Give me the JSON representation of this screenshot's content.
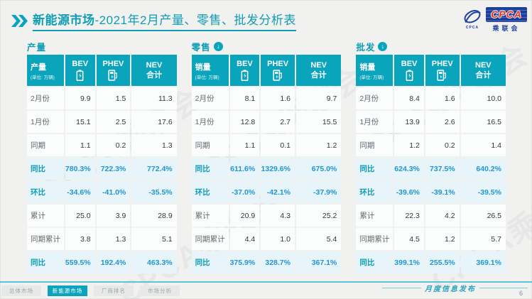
{
  "header": {
    "title_bold": "新能源市场",
    "title_rest": "-2021年2月产量、零售、批发分析表",
    "logo": {
      "icon_label": "CPCA",
      "cpca": "CPCA",
      "sub": "乘联会"
    }
  },
  "chart_data": [
    {
      "type": "table",
      "id": "production",
      "title": "产量",
      "arrow": false,
      "header_label": "产量",
      "unit": "(单位: 万辆)",
      "columns": [
        "BEV",
        "PHEV",
        "NEV\n合计"
      ],
      "rows": [
        {
          "label": "2月份",
          "values": [
            "9.9",
            "1.5",
            "11.3"
          ],
          "highlight": false
        },
        {
          "label": "1月份",
          "values": [
            "15.1",
            "2.5",
            "17.6"
          ],
          "highlight": false
        },
        {
          "label": "同期",
          "values": [
            "1.1",
            "0.2",
            "1.3"
          ],
          "highlight": false
        },
        {
          "label": "同比",
          "values": [
            "780.3%",
            "722.3%",
            "772.4%"
          ],
          "highlight": true
        },
        {
          "label": "环比",
          "values": [
            "-34.6%",
            "-41.0%",
            "-35.5%"
          ],
          "highlight": true
        },
        {
          "label": "累计",
          "values": [
            "25.0",
            "3.9",
            "28.9"
          ],
          "highlight": false
        },
        {
          "label": "同期累计",
          "values": [
            "3.8",
            "1.3",
            "5.1"
          ],
          "highlight": false
        },
        {
          "label": "同比",
          "values": [
            "559.5%",
            "192.4%",
            "463.3%"
          ],
          "highlight": true
        }
      ]
    },
    {
      "type": "table",
      "id": "retail",
      "title": "零售",
      "arrow": true,
      "header_label": "销量",
      "unit": "(单位: 万辆)",
      "columns": [
        "BEV",
        "PHEV",
        "NEV\n合计"
      ],
      "rows": [
        {
          "label": "2月份",
          "values": [
            "8.1",
            "1.6",
            "9.7"
          ],
          "highlight": false
        },
        {
          "label": "1月份",
          "values": [
            "12.8",
            "2.7",
            "15.5"
          ],
          "highlight": false
        },
        {
          "label": "同期",
          "values": [
            "1.1",
            "0.1",
            "1.2"
          ],
          "highlight": false
        },
        {
          "label": "同比",
          "values": [
            "611.6%",
            "1329.6%",
            "675.0%"
          ],
          "highlight": true
        },
        {
          "label": "环比",
          "values": [
            "-37.0%",
            "-42.1%",
            "-37.9%"
          ],
          "highlight": true
        },
        {
          "label": "累计",
          "values": [
            "20.9",
            "4.3",
            "25.2"
          ],
          "highlight": false
        },
        {
          "label": "同期累计",
          "values": [
            "4.4",
            "1.0",
            "5.4"
          ],
          "highlight": false
        },
        {
          "label": "同比",
          "values": [
            "375.9%",
            "328.7%",
            "367.1%"
          ],
          "highlight": true
        }
      ]
    },
    {
      "type": "table",
      "id": "wholesale",
      "title": "批发",
      "arrow": true,
      "header_label": "销量",
      "unit": "(单位: 万辆)",
      "columns": [
        "BEV",
        "PHEV",
        "NEV\n合计"
      ],
      "rows": [
        {
          "label": "2月份",
          "values": [
            "8.4",
            "1.6",
            "10.0"
          ],
          "highlight": false
        },
        {
          "label": "1月份",
          "values": [
            "13.9",
            "2.6",
            "16.5"
          ],
          "highlight": false
        },
        {
          "label": "同期",
          "values": [
            "1.2",
            "0.2",
            "1.4"
          ],
          "highlight": false
        },
        {
          "label": "同比",
          "values": [
            "624.3%",
            "737.5%",
            "640.2%"
          ],
          "highlight": true
        },
        {
          "label": "环比",
          "values": [
            "-39.6%",
            "-39.1%",
            "-39.5%"
          ],
          "highlight": true
        },
        {
          "label": "累计",
          "values": [
            "22.3",
            "4.2",
            "26.5"
          ],
          "highlight": false
        },
        {
          "label": "同期累计",
          "values": [
            "4.5",
            "1.2",
            "5.7"
          ],
          "highlight": false
        },
        {
          "label": "同比",
          "values": [
            "399.1%",
            "255.5%",
            "369.1%"
          ],
          "highlight": true
        }
      ]
    }
  ],
  "footer": {
    "tabs": [
      {
        "label": "总体市场",
        "active": false,
        "name": "tab-overall-market"
      },
      {
        "label": "新能源市场",
        "active": true,
        "name": "tab-nev-market"
      },
      {
        "label": "厂商排名",
        "active": false,
        "name": "tab-manufacturer-ranking"
      },
      {
        "label": "市场分析",
        "active": false,
        "name": "tab-market-analysis"
      }
    ],
    "publish_label": "月度信息发布",
    "page_number": "6"
  },
  "watermark": "CPCA乘联会",
  "colors": {
    "accent": "#0ba4bd",
    "accent_dark": "#0f9db4",
    "highlight_bg": "#e7f4fa",
    "highlight_text": "#2097cf",
    "logo_blue": "#1c3f9e",
    "logo_red": "#e02f1f",
    "footer_line": "#5ec3d6"
  }
}
